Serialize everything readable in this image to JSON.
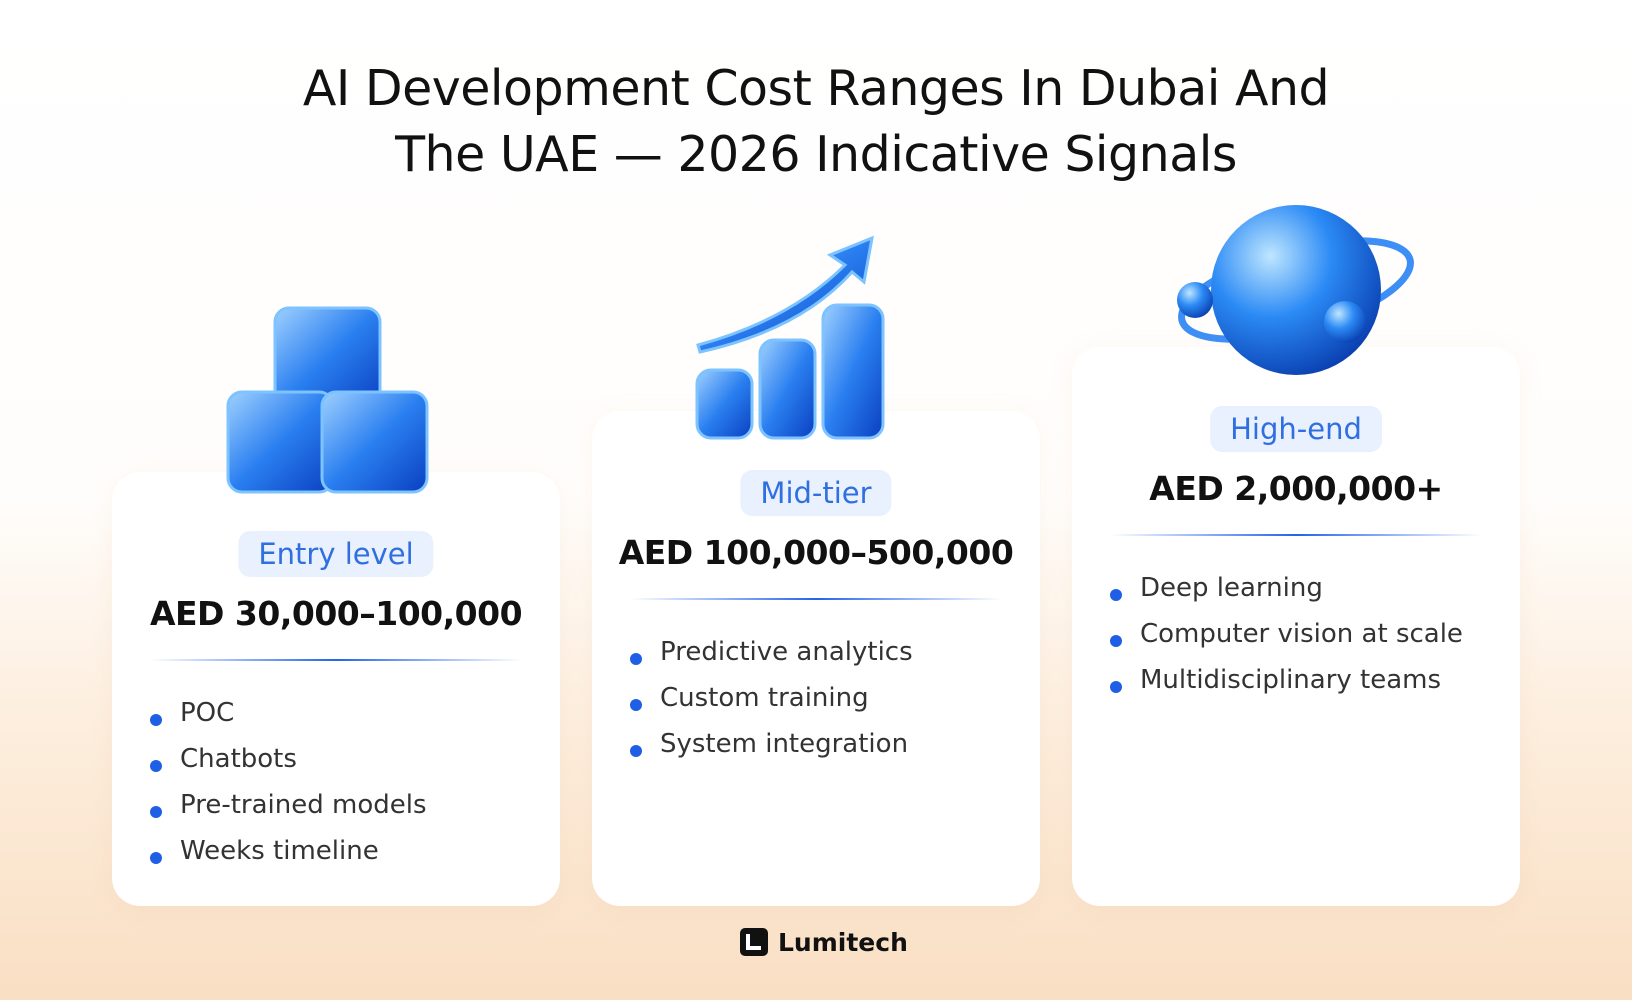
{
  "header": {
    "title_lines": [
      "AI Development Cost Ranges In Dubai And",
      "The UAE — 2026 Indicative Signals"
    ]
  },
  "cards": [
    {
      "tier": "Entry level",
      "price": "AED 30,000–100,000",
      "items": [
        "POC",
        "Chatbots",
        "Pre-trained models",
        "Weeks timeline"
      ]
    },
    {
      "tier": "Mid-tier",
      "price": "AED 100,000–500,000",
      "items": [
        "Predictive analytics",
        "Custom training",
        "System integration"
      ]
    },
    {
      "tier": "High-end",
      "price": "AED 2,000,000+",
      "items": [
        "Deep learning",
        "Computer vision at scale",
        "Multidisciplinary teams"
      ]
    }
  ],
  "footer": {
    "brand": "Lumitech"
  }
}
